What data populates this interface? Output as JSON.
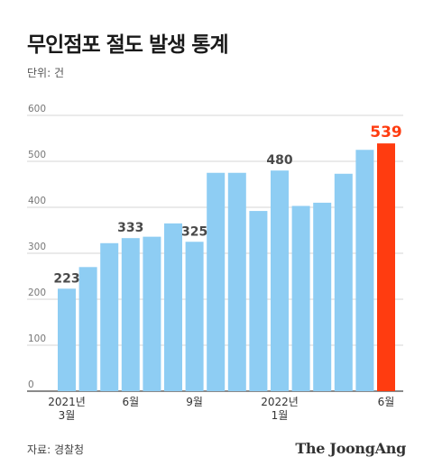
{
  "title": "무인점포 절도 발생 통계",
  "unit_label": "단위: 건",
  "source": "자료: 경찰청",
  "publisher": "The JoongAng",
  "colors": {
    "bar": "#8ECDF3",
    "highlight": "#FF3C10",
    "grid": "#d5d5d5",
    "axis": "#444444"
  },
  "chart_data": {
    "type": "bar",
    "ylim": [
      0,
      600
    ],
    "yticks": [
      0,
      100,
      200,
      300,
      400,
      500,
      600
    ],
    "grid": true,
    "values": [
      223,
      270,
      322,
      333,
      336,
      365,
      325,
      475,
      475,
      392,
      480,
      403,
      410,
      473,
      525,
      539
    ],
    "x_tick_labels": [
      "2021년\n3월",
      "",
      "",
      "6월",
      "",
      "",
      "9월",
      "",
      "",
      "",
      "2022년\n1월",
      "",
      "",
      "",
      "",
      "6월"
    ],
    "data_labels": [
      "223",
      "",
      "",
      "333",
      "",
      "",
      "325",
      "",
      "",
      "",
      "480",
      "",
      "",
      "",
      "",
      "539"
    ],
    "highlight_index": 15
  }
}
